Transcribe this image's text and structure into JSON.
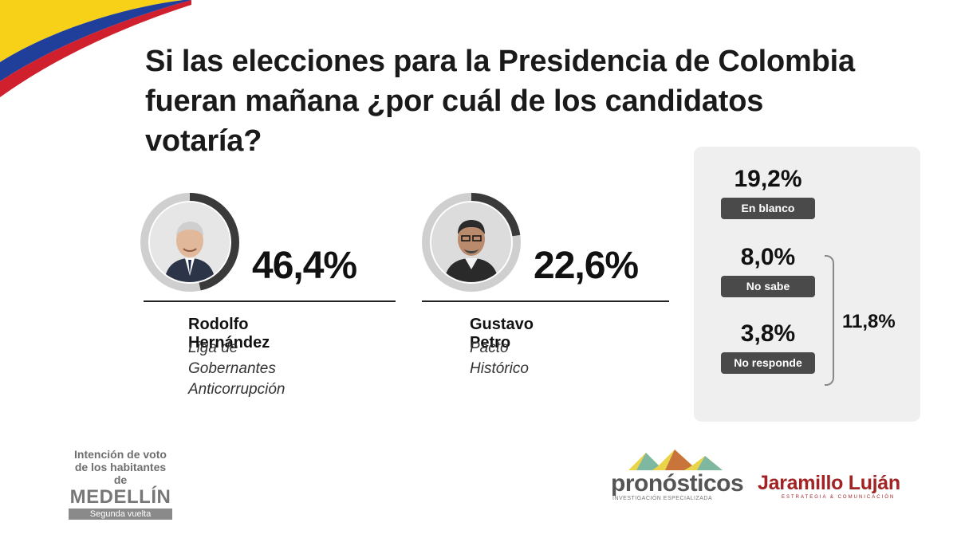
{
  "title": {
    "line1": "Si las elecciones para la Presidencia de Colombia",
    "line2": "fueran mañana ¿por cuál de los candidatos votaría?"
  },
  "candidates": [
    {
      "name": "Rodolfo Hernández",
      "party_line1": "Liga de Gobernantes",
      "party_line2": "Anticorrupción",
      "pct_label": "46,4%",
      "value": 46.4
    },
    {
      "name": "Gustavo Petro",
      "party_line1": "Pacto",
      "party_line2": "Histórico",
      "pct_label": "22,6%",
      "value": 22.6
    }
  ],
  "other": [
    {
      "value_label": "19,2%",
      "label": "En blanco",
      "value": 19.2
    },
    {
      "value_label": "8,0%",
      "label": "No sabe",
      "value": 8.0
    },
    {
      "value_label": "3,8%",
      "label": "No responde",
      "value": 3.8
    }
  ],
  "combined_label": "11,8%",
  "badge": {
    "line1": "Intención de voto",
    "line2": "de los habitantes de",
    "city": "MEDELLÍN",
    "round": "Segunda vuelta"
  },
  "logos": {
    "pronosticos": "pronósticos",
    "pronosticos_sub": "INVESTIGACIÓN ESPECIALIZADA",
    "jaramillo": "Jaramillo Luján",
    "jaramillo_sub": "ESTRATEGIA & COMUNICACIÓN"
  },
  "colors": {
    "flag_yellow": "#f7d117",
    "flag_blue": "#1f3f9a",
    "flag_red": "#d0202e",
    "ring_dark": "#3a3a3a",
    "ring_light": "#cfcfcf",
    "label_bg": "#4a4a4a",
    "panel_bg": "#efefef",
    "jaramillo_red": "#a22323"
  },
  "chart_data": {
    "type": "pie",
    "title": "Si las elecciones para la Presidencia de Colombia fueran mañana ¿por cuál de los candidatos votaría?",
    "categories": [
      "Rodolfo Hernández",
      "Gustavo Petro",
      "En blanco",
      "No sabe",
      "No responde"
    ],
    "values": [
      46.4,
      22.6,
      19.2,
      8.0,
      3.8
    ],
    "unit": "%",
    "groups": [
      {
        "label": "11,8%",
        "members": [
          "No sabe",
          "No responde"
        ],
        "value": 11.8
      }
    ]
  }
}
